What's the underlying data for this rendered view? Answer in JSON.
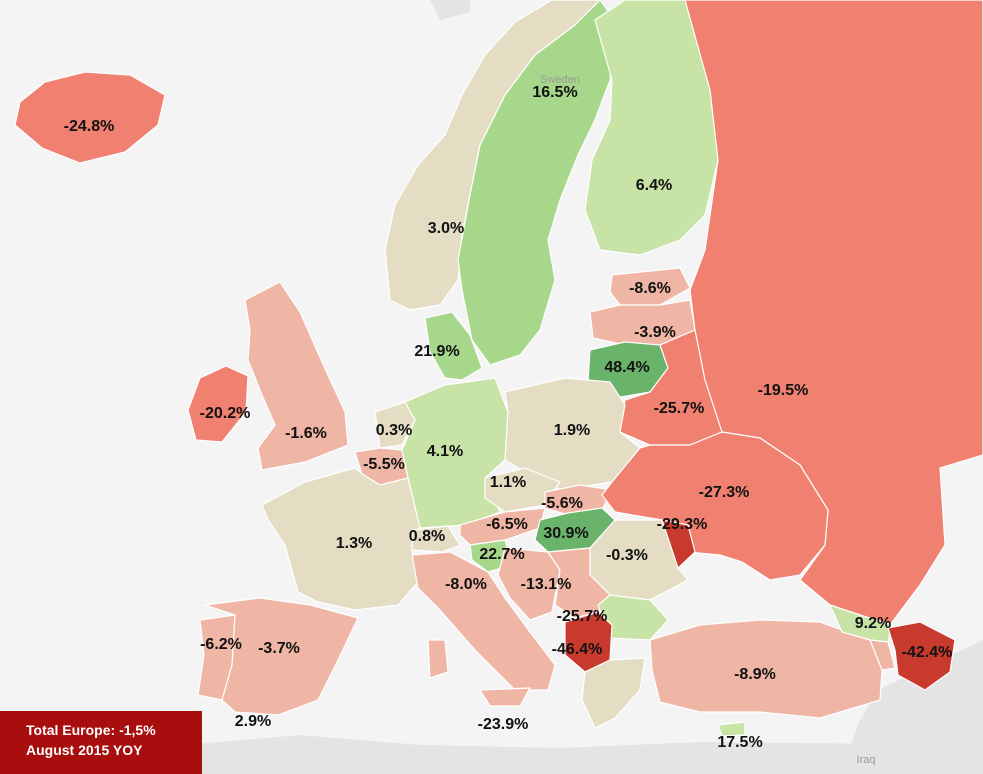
{
  "map": {
    "background_labels": {
      "sweden": "Sweden",
      "iraq": "Iraq"
    },
    "colors": {
      "land_other": "#e4e4e4",
      "sea": "#f4f4f4",
      "strong_green": "#6ab36a",
      "green": "#a7d78b",
      "light_green": "#c8e3a6",
      "neutral": "#e4ddc4",
      "light_red": "#efb5a5",
      "red": "#f08070",
      "strong_red": "#c93a2e",
      "box": "#a80e0e"
    },
    "legend": {
      "total": "Total Europe: -1,5%",
      "period": "August 2015 YOY"
    },
    "countries": [
      {
        "name": "Iceland",
        "value": "-24.8%"
      },
      {
        "name": "Sweden",
        "value": "16.5%"
      },
      {
        "name": "Finland",
        "value": "6.4%"
      },
      {
        "name": "Norway",
        "value": "3.0%"
      },
      {
        "name": "Estonia",
        "value": "-8.6%"
      },
      {
        "name": "Latvia",
        "value": "-3.9%"
      },
      {
        "name": "Denmark",
        "value": "21.9%"
      },
      {
        "name": "Lithuania",
        "value": "48.4%"
      },
      {
        "name": "Russia",
        "value": "-19.5%"
      },
      {
        "name": "Ireland",
        "value": "-20.2%"
      },
      {
        "name": "United Kingdom",
        "value": "-1.6%"
      },
      {
        "name": "Belarus",
        "value": "-25.7%"
      },
      {
        "name": "Netherlands",
        "value": "0.3%"
      },
      {
        "name": "Germany",
        "value": "4.1%"
      },
      {
        "name": "Poland",
        "value": "1.9%"
      },
      {
        "name": "Belgium",
        "value": "-5.5%"
      },
      {
        "name": "Czech Republic",
        "value": "1.1%"
      },
      {
        "name": "Ukraine",
        "value": "-27.3%"
      },
      {
        "name": "Slovakia",
        "value": "-5.6%"
      },
      {
        "name": "Austria",
        "value": "-6.5%"
      },
      {
        "name": "Moldova",
        "value": "-29.3%"
      },
      {
        "name": "Hungary",
        "value": "30.9%"
      },
      {
        "name": "France",
        "value": "1.3%"
      },
      {
        "name": "Switzerland",
        "value": "0.8%"
      },
      {
        "name": "Slovenia",
        "value": "22.7%"
      },
      {
        "name": "Romania",
        "value": "-0.3%"
      },
      {
        "name": "Italy",
        "value": "-8.0%"
      },
      {
        "name": "Croatia",
        "value": "-13.1%"
      },
      {
        "name": "Serbia",
        "value": "-25.7%"
      },
      {
        "name": "Georgia",
        "value": "9.2%"
      },
      {
        "name": "Portugal",
        "value": "-6.2%"
      },
      {
        "name": "Spain",
        "value": "-3.7%"
      },
      {
        "name": "Macedonia",
        "value": "-46.4%"
      },
      {
        "name": "Azerbaijan",
        "value": "-42.4%"
      },
      {
        "name": "Turkey",
        "value": "-8.9%"
      },
      {
        "name": "Gibraltar",
        "value": "2.9%"
      },
      {
        "name": "Malta",
        "value": "-23.9%"
      },
      {
        "name": "Cyprus",
        "value": "17.5%"
      }
    ]
  }
}
